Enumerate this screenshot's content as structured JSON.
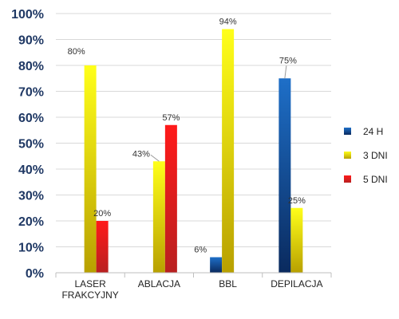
{
  "chart_data": {
    "type": "bar",
    "title": "",
    "xlabel": "",
    "ylabel": "",
    "ylim": [
      0,
      100
    ],
    "y_ticks": [
      "0%",
      "10%",
      "20%",
      "30%",
      "40%",
      "50%",
      "60%",
      "70%",
      "80%",
      "90%",
      "100%"
    ],
    "grid": true,
    "legend_position": "right",
    "categories": [
      [
        "LASER",
        "FRAKCYJNY"
      ],
      [
        "ABLACJA"
      ],
      [
        "BBL"
      ],
      [
        "DEPILACJA"
      ]
    ],
    "series": [
      {
        "name": "24 H",
        "color_top": "#1e6fc8",
        "color_bottom": "#0a2a5e",
        "values": [
          null,
          null,
          6,
          75
        ],
        "labels": [
          "",
          "",
          "6%",
          "75%"
        ]
      },
      {
        "name": "3 DNI",
        "color_top": "#ffff1a",
        "color_bottom": "#b8a000",
        "values": [
          80,
          43,
          94,
          25
        ],
        "labels": [
          "80%",
          "43%",
          "94%",
          "25%"
        ]
      },
      {
        "name": "5 DNI",
        "color_top": "#ff1a1a",
        "color_bottom": "#b82020",
        "values": [
          20,
          57,
          null,
          null
        ],
        "labels": [
          "20%",
          "57%",
          "",
          ""
        ]
      }
    ]
  }
}
